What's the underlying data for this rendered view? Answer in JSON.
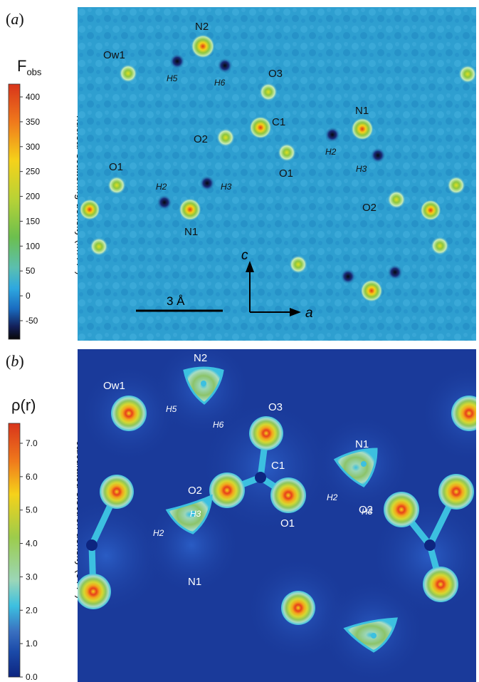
{
  "panel_a": {
    "letter": "a",
    "colorbar": {
      "title": "F",
      "title_sub": "obs",
      "label": "nuclear scattering density (fm Å",
      "label_sup": "-3",
      "label_end": ")",
      "ticks": [
        "400",
        "350",
        "300",
        "250",
        "200",
        "150",
        "100",
        "50",
        "0",
        "-50"
      ]
    },
    "scale_bar": "3 Å",
    "axis_c": "c",
    "axis_a": "a",
    "atoms": [
      "N2",
      "Ow1",
      "O3",
      "C1",
      "O2",
      "N1",
      "O1",
      "O1",
      "N1",
      "O2"
    ],
    "hydrogens": [
      "H5",
      "H6",
      "H2",
      "H3",
      "H2",
      "H3"
    ]
  },
  "panel_b": {
    "letter": "b",
    "colorbar": {
      "title": "ρ(r)",
      "label": "calculated electron density (e Å",
      "label_sup": "-3",
      "label_end": ")",
      "ticks": [
        "7.0",
        "6.0",
        "5.0",
        "4.0",
        "3.0",
        "2.0",
        "1.0",
        "0.0"
      ]
    },
    "atoms": [
      "N2",
      "Ow1",
      "O3",
      "C1",
      "O2",
      "N1",
      "O1",
      "N1",
      "O2"
    ],
    "hydrogens": [
      "H5",
      "H6",
      "H2",
      "H3",
      "H3",
      "H2"
    ]
  },
  "colors": {
    "nuclear_background": "#2e9fd0",
    "electron_background": "#1a3a9a",
    "peak_red": "#e03a10",
    "peak_yellow": "#f2d21a",
    "peak_green": "#7cc04a",
    "hole_dark": "#141a3a"
  }
}
